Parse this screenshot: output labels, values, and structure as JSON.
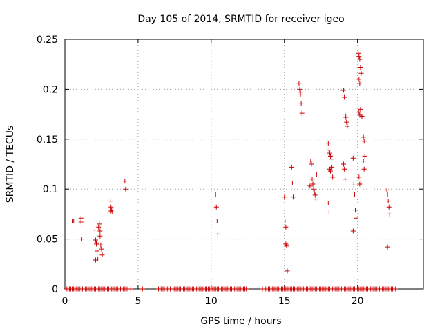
{
  "chart_data": {
    "type": "scatter",
    "title": "Day 105 of 2014, SRMTID for receiver igeo",
    "xlabel": "GPS time / hours",
    "ylabel": "SRMTID / TECUs",
    "xlim": [
      0,
      24.5
    ],
    "ylim": [
      0,
      0.25
    ],
    "grid": true,
    "marker": "+",
    "color": "#cc0000",
    "xticks": [
      0,
      5,
      10,
      15,
      20
    ],
    "xtick_labels": [
      "0",
      "5",
      "10",
      "15",
      "20"
    ],
    "yticks": [
      0,
      0.05,
      0.1,
      0.15,
      0.2,
      0.25
    ],
    "ytick_labels": [
      "0",
      "0.05",
      "0.1",
      "0.15",
      "0.2",
      "0.25"
    ],
    "series": [
      {
        "name": "SRMTID",
        "x": [
          0.5,
          0.6,
          1.1,
          1.1,
          1.15,
          2.05,
          2.1,
          2.15,
          2.2,
          2.25,
          2.3,
          2.35,
          2.4,
          2.4,
          2.45,
          2.5,
          2.55,
          2.1,
          2.15,
          3.1,
          3.15,
          3.2,
          3.15,
          3.25,
          4.1,
          4.15,
          10.3,
          10.35,
          10.4,
          10.45,
          15.0,
          15.05,
          15.1,
          15.1,
          15.15,
          15.2,
          15.5,
          15.55,
          15.6,
          16.0,
          16.05,
          16.1,
          16.1,
          16.15,
          16.2,
          16.8,
          16.85,
          16.9,
          16.95,
          17.0,
          17.05,
          17.1,
          17.15,
          17.2,
          16.75,
          18.0,
          18.05,
          18.1,
          18.15,
          18.2,
          18.25,
          18.1,
          18.15,
          18.2,
          18.3,
          18.0,
          18.05,
          19.0,
          19.05,
          19.1,
          19.15,
          19.2,
          19.25,
          19.3,
          19.05,
          19.1,
          19.15,
          19.7,
          19.75,
          19.8,
          19.85,
          19.9,
          19.7,
          19.75,
          20.05,
          20.1,
          20.15,
          20.2,
          20.25,
          20.1,
          20.15,
          20.2,
          20.1,
          20.15,
          20.3,
          20.4,
          20.45,
          20.5,
          20.4,
          20.45,
          20.1,
          20.15,
          22.0,
          22.05,
          22.1,
          22.15,
          22.2,
          22.05
        ],
        "y": [
          0.068,
          0.068,
          0.071,
          0.067,
          0.05,
          0.059,
          0.049,
          0.046,
          0.038,
          0.03,
          0.062,
          0.065,
          0.058,
          0.053,
          0.044,
          0.04,
          0.034,
          0.029,
          0.045,
          0.088,
          0.082,
          0.079,
          0.078,
          0.077,
          0.108,
          0.1,
          0.095,
          0.082,
          0.068,
          0.055,
          0.092,
          0.068,
          0.062,
          0.045,
          0.043,
          0.018,
          0.122,
          0.106,
          0.092,
          0.206,
          0.2,
          0.197,
          0.195,
          0.186,
          0.176,
          0.128,
          0.125,
          0.11,
          0.105,
          0.1,
          0.097,
          0.094,
          0.09,
          0.115,
          0.103,
          0.146,
          0.139,
          0.136,
          0.133,
          0.13,
          0.122,
          0.12,
          0.118,
          0.115,
          0.112,
          0.086,
          0.077,
          0.199,
          0.199,
          0.192,
          0.175,
          0.172,
          0.167,
          0.163,
          0.125,
          0.12,
          0.11,
          0.131,
          0.104,
          0.095,
          0.079,
          0.071,
          0.058,
          0.106,
          0.236,
          0.233,
          0.23,
          0.222,
          0.216,
          0.21,
          0.206,
          0.18,
          0.177,
          0.174,
          0.173,
          0.152,
          0.148,
          0.133,
          0.128,
          0.12,
          0.112,
          0.105,
          0.099,
          0.095,
          0.088,
          0.082,
          0.075,
          0.042
        ],
        "zero_x": [
          0.1,
          0.2,
          0.3,
          0.4,
          0.5,
          0.6,
          0.7,
          0.8,
          0.9,
          1.0,
          1.1,
          1.2,
          1.3,
          1.4,
          1.5,
          1.6,
          1.7,
          1.8,
          1.9,
          2.0,
          2.1,
          2.2,
          2.3,
          2.4,
          2.5,
          2.6,
          2.7,
          2.8,
          2.9,
          3.0,
          3.1,
          3.2,
          3.3,
          3.4,
          3.5,
          3.6,
          3.7,
          3.8,
          3.9,
          4.0,
          4.1,
          4.2,
          4.3,
          4.5,
          5.3,
          6.4,
          6.5,
          6.6,
          6.7,
          6.8,
          7.0,
          7.1,
          7.2,
          7.4,
          7.5,
          7.6,
          7.7,
          7.8,
          7.9,
          8.0,
          8.1,
          8.2,
          8.3,
          8.4,
          8.5,
          8.6,
          8.7,
          8.8,
          8.9,
          9.0,
          9.1,
          9.2,
          9.3,
          9.4,
          9.5,
          9.6,
          9.7,
          9.8,
          9.9,
          10.0,
          10.1,
          10.2,
          10.3,
          10.4,
          10.5,
          10.6,
          10.7,
          10.8,
          10.9,
          11.0,
          11.1,
          11.2,
          11.3,
          11.4,
          11.5,
          11.6,
          11.7,
          11.8,
          11.9,
          12.0,
          12.1,
          12.2,
          12.3,
          12.4,
          13.5,
          13.7,
          13.8,
          13.9,
          14.0,
          14.1,
          14.2,
          14.3,
          14.4,
          14.5,
          14.6,
          14.7,
          14.8,
          14.9,
          15.0,
          15.1,
          15.2,
          15.3,
          15.4,
          15.5,
          15.6,
          15.7,
          15.8,
          15.9,
          16.0,
          16.1,
          16.2,
          16.3,
          16.4,
          16.5,
          16.6,
          16.7,
          16.8,
          16.9,
          17.0,
          17.1,
          17.2,
          17.3,
          17.4,
          17.5,
          17.6,
          17.7,
          17.8,
          17.9,
          18.0,
          18.1,
          18.2,
          18.3,
          18.4,
          18.5,
          18.6,
          18.7,
          18.8,
          18.9,
          19.0,
          19.1,
          19.2,
          19.3,
          19.4,
          19.5,
          19.6,
          19.7,
          19.8,
          19.9,
          20.0,
          20.1,
          20.2,
          20.3,
          20.4,
          20.5,
          20.6,
          20.7,
          20.8,
          20.9,
          21.0,
          21.1,
          21.2,
          21.3,
          21.4,
          21.5,
          21.6,
          21.7,
          21.8,
          21.9,
          22.0,
          22.1,
          22.2,
          22.3,
          22.4,
          22.5,
          22.6
        ]
      }
    ]
  }
}
